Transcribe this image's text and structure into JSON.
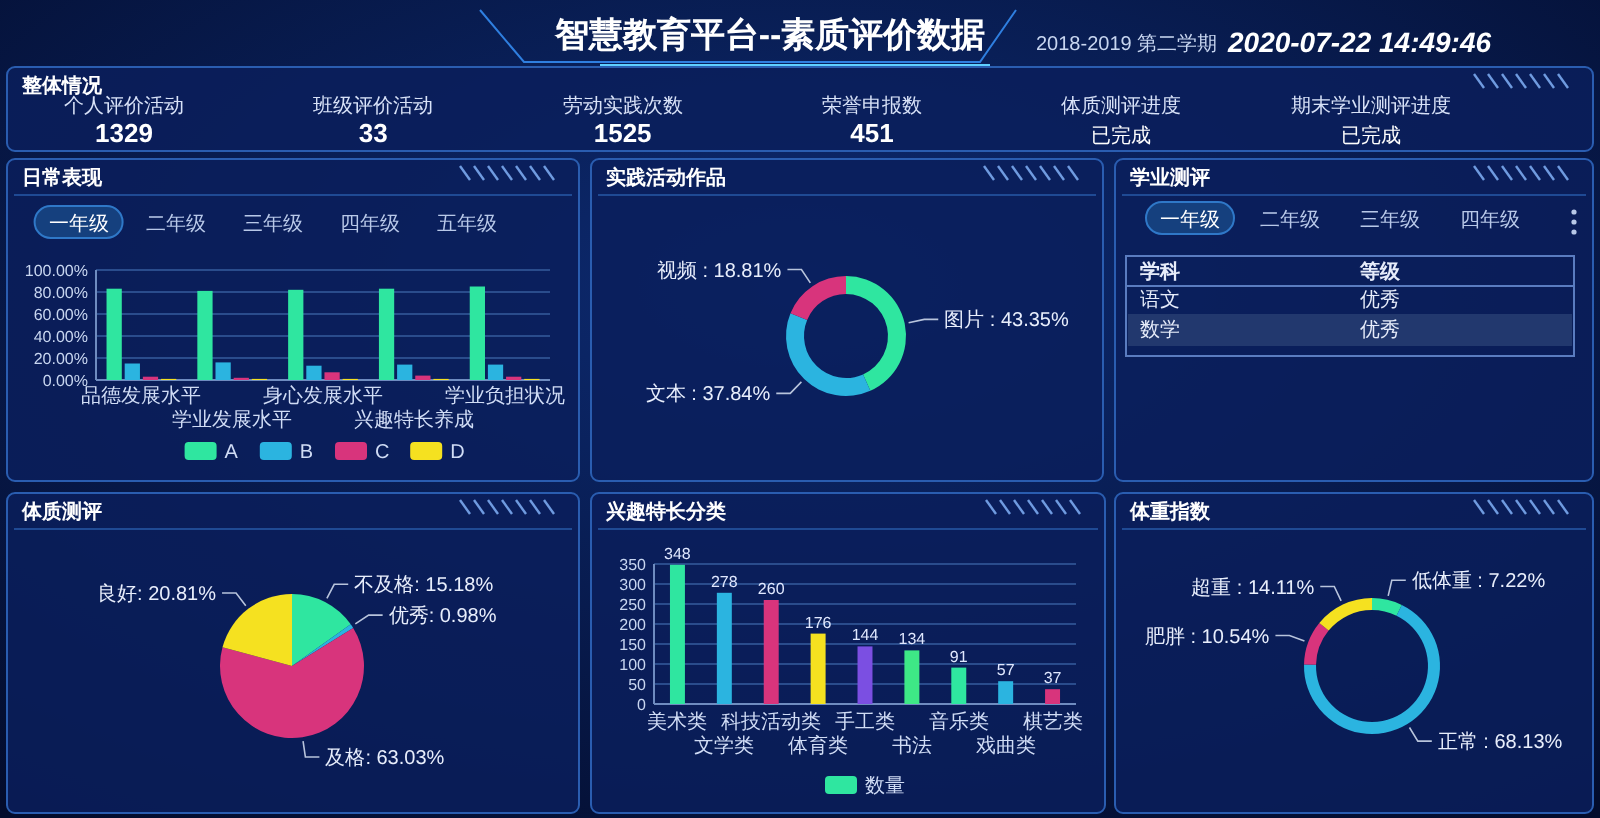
{
  "chart_data": [
    {
      "type": "other",
      "title": "智慧教育平台--素质评价数据",
      "subtitle": "2018-2019 第二学期",
      "annotations": [
        "2020-07-22 14:49:46"
      ]
    },
    {
      "type": "other",
      "title": "整体情况",
      "annotations": [
        "个人评价活动",
        "1329",
        "班级评价活动",
        "33",
        "劳动实践次数",
        "1525",
        "荣誉申报数",
        "451",
        "体质测评进度",
        "已完成",
        "期末学业测评进度",
        "已完成"
      ]
    },
    {
      "type": "bar",
      "title": "日常表现",
      "annotations": [
        "一年级",
        "二年级",
        "三年级",
        "四年级",
        "五年级"
      ],
      "categories": [
        "品德发展水平",
        "学业发展水平",
        "身心发展水平",
        "兴趣特长养成",
        "学业负担状况"
      ],
      "series": [
        {
          "name": "A",
          "color": "#2fe6a0",
          "values": [
            83,
            81,
            82,
            83,
            85
          ]
        },
        {
          "name": "B",
          "color": "#2bb4e0",
          "values": [
            15,
            16,
            13,
            14,
            14
          ]
        },
        {
          "name": "C",
          "color": "#d8347c",
          "values": [
            3,
            2,
            7,
            4,
            3
          ]
        },
        {
          "name": "D",
          "color": "#f5e120",
          "values": [
            1,
            1,
            1,
            1,
            1
          ]
        }
      ],
      "ylim": [
        0,
        100
      ],
      "yticks": [
        {
          "value": 0,
          "label": "0.00%"
        },
        {
          "value": 20,
          "label": "20.00%"
        },
        {
          "value": 40,
          "label": "40.00%"
        },
        {
          "value": 60,
          "label": "60.00%"
        },
        {
          "value": 80,
          "label": "80.00%"
        },
        {
          "value": 100,
          "label": "100.00%"
        }
      ],
      "grid": "y",
      "legend": "bottom"
    },
    {
      "type": "donut",
      "title": "实践活动作品",
      "categories": [
        "图片",
        "文本",
        "视频"
      ],
      "values": [
        43.35,
        37.84,
        18.81
      ],
      "colors": [
        "#2fe6a0",
        "#2bb4e0",
        "#d8347c"
      ],
      "value_labels": [
        "43.35%",
        "37.84%",
        "18.81%"
      ]
    },
    {
      "type": "other",
      "title": "学业测评",
      "annotations": [
        "一年级",
        "二年级",
        "三年级",
        "四年级",
        "学科",
        "等级",
        "语文",
        "优秀",
        "数学",
        "优秀"
      ]
    },
    {
      "type": "pie",
      "title": "体质测评",
      "categories": [
        "不及格",
        "优秀",
        "及格",
        "良好"
      ],
      "values": [
        15.18,
        0.98,
        63.03,
        20.81
      ],
      "colors": [
        "#2fe6a0",
        "#2bb4e0",
        "#d8347c",
        "#f5e120"
      ],
      "value_labels": [
        "15.18%",
        "0.98%",
        "63.03%",
        "20.81%"
      ]
    },
    {
      "type": "bar",
      "title": "兴趣特长分类",
      "categories": [
        "美术类",
        "文学类",
        "科技活动类",
        "体育类",
        "手工类",
        "书法",
        "音乐类",
        "戏曲类",
        "棋艺类"
      ],
      "series": [
        {
          "name": "数量",
          "colors": [
            "#2fe6a0",
            "#2bb4e0",
            "#d8347c",
            "#f5e120",
            "#7b4fe2",
            "#3ee886",
            "#2fe6a0",
            "#2bb4e0",
            "#d8347c"
          ],
          "values": [
            348,
            278,
            260,
            176,
            144,
            134,
            91,
            57,
            37
          ]
        }
      ],
      "ylim": [
        0,
        350
      ],
      "yticks": [
        0,
        50,
        100,
        150,
        200,
        250,
        300,
        350
      ],
      "grid": "y",
      "data_labels": true,
      "legend": "bottom"
    },
    {
      "type": "donut",
      "title": "体重指数",
      "categories": [
        "低体重",
        "正常",
        "肥胖",
        "超重"
      ],
      "values": [
        7.22,
        68.13,
        10.54,
        14.11
      ],
      "colors": [
        "#2fe6a0",
        "#2bb4e0",
        "#d8347c",
        "#f5e120"
      ],
      "value_labels": [
        "7.22%",
        "68.13%",
        "10.54%",
        "14.11%"
      ]
    }
  ]
}
